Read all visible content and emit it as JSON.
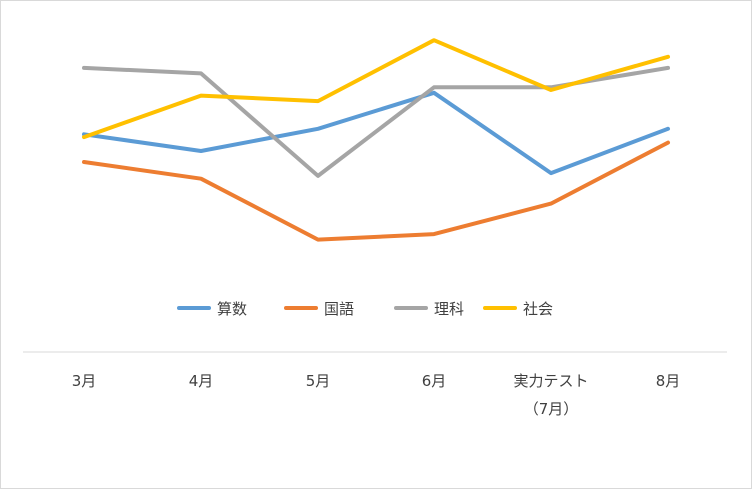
{
  "chart_data": {
    "type": "line",
    "categories": [
      {
        "lines": [
          "3月"
        ]
      },
      {
        "lines": [
          "4月"
        ]
      },
      {
        "lines": [
          "5月"
        ]
      },
      {
        "lines": [
          "6月"
        ]
      },
      {
        "lines": [
          "実力テスト",
          "（7月）"
        ]
      },
      {
        "lines": [
          "8月"
        ]
      }
    ],
    "series": [
      {
        "name": "算数",
        "color": "#5b9bd5",
        "values": [
          0.58,
          0.52,
          0.6,
          0.73,
          0.44,
          0.6
        ]
      },
      {
        "name": "国語",
        "color": "#ed7d31",
        "values": [
          0.48,
          0.42,
          0.2,
          0.22,
          0.33,
          0.55
        ]
      },
      {
        "name": "理科",
        "color": "#a5a5a5",
        "values": [
          0.82,
          0.8,
          0.43,
          0.75,
          0.75,
          0.82
        ]
      },
      {
        "name": "社会",
        "color": "#ffc000",
        "values": [
          0.57,
          0.72,
          0.7,
          0.92,
          0.74,
          0.86
        ]
      }
    ],
    "legend_position": "below plot",
    "grid": false,
    "axis": "x only"
  }
}
